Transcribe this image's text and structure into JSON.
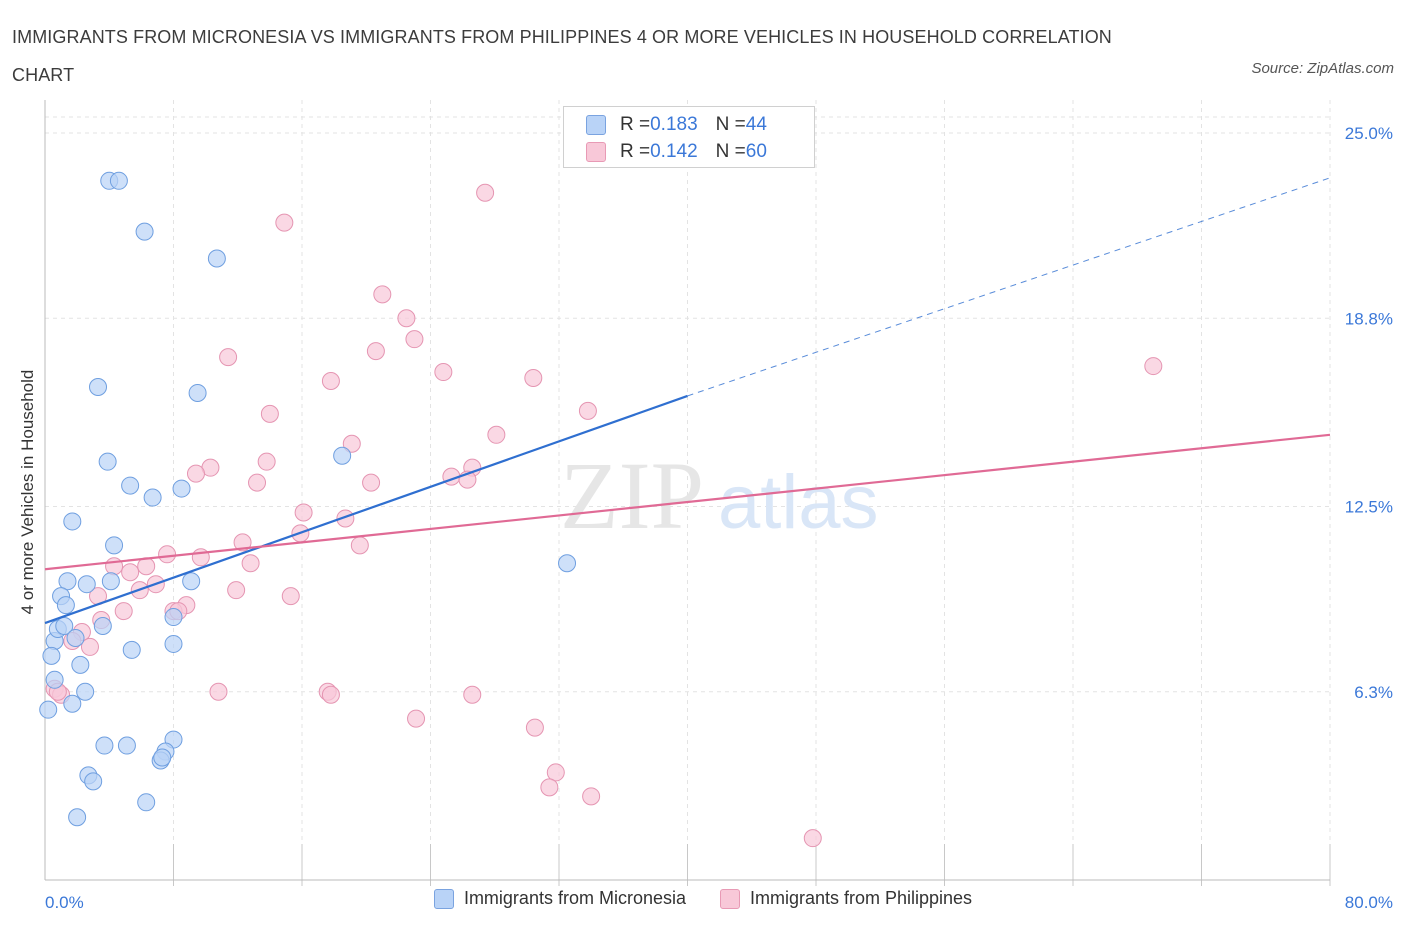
{
  "header": {
    "title": "IMMIGRANTS FROM MICRONESIA VS IMMIGRANTS FROM PHILIPPINES 4 OR MORE VEHICLES IN HOUSEHOLD CORRELATION CHART",
    "source": "Source: ZipAtlas.com"
  },
  "watermark": {
    "zip": "ZIP",
    "atlas": "atlas"
  },
  "colors": {
    "blue_fill": "#b9d3f7",
    "blue_stroke": "#6f9fe0",
    "blue_line": "#2f6fd0",
    "pink_fill": "#f8c8d8",
    "pink_stroke": "#e595b2",
    "pink_line": "#e06a95",
    "axis_label": "#3b78d8",
    "grid": "#e3e3e3"
  },
  "legend_top": {
    "series": [
      {
        "r_label": "R = ",
        "r_value": "0.183",
        "n_label": "N = ",
        "n_value": "44"
      },
      {
        "r_label": "R = ",
        "r_value": "0.142",
        "n_label": "N = ",
        "n_value": "60"
      }
    ]
  },
  "legend_bottom": {
    "series": [
      {
        "label": "Immigrants from Micronesia"
      },
      {
        "label": "Immigrants from Philippines"
      }
    ]
  },
  "chart_data": {
    "type": "scatter",
    "title": "IMMIGRANTS FROM MICRONESIA VS IMMIGRANTS FROM PHILIPPINES 4 OR MORE VEHICLES IN HOUSEHOLD CORRELATION CHART",
    "xlabel": "",
    "ylabel": "4 or more Vehicles in Household",
    "xlim": [
      0,
      80
    ],
    "ylim": [
      0,
      25.5
    ],
    "x_tick_labels": [
      {
        "value": 0,
        "label": "0.0%"
      },
      {
        "value": 80,
        "label": "80.0%"
      }
    ],
    "y_tick_labels": [
      {
        "value": 6.3,
        "label": "6.3%"
      },
      {
        "value": 12.5,
        "label": "12.5%"
      },
      {
        "value": 18.8,
        "label": "18.8%"
      },
      {
        "value": 25.0,
        "label": "25.0%"
      }
    ],
    "x_minor_ticks": [
      8,
      16,
      24,
      32,
      40,
      48,
      56,
      64,
      72,
      80
    ],
    "grid": true,
    "legend_position": "top-center",
    "series": [
      {
        "name": "Immigrants from Micronesia",
        "color": "blue",
        "R": 0.183,
        "N": 44,
        "trend": {
          "x": [
            0,
            40
          ],
          "y": [
            8.6,
            16.2
          ],
          "dashed_extension_to": [
            80,
            23.5
          ]
        },
        "points": [
          [
            4.0,
            23.4
          ],
          [
            4.6,
            23.4
          ],
          [
            6.2,
            21.7
          ],
          [
            10.7,
            20.8
          ],
          [
            3.3,
            16.5
          ],
          [
            9.5,
            16.3
          ],
          [
            3.9,
            14.0
          ],
          [
            18.5,
            14.2
          ],
          [
            5.3,
            13.2
          ],
          [
            6.7,
            12.8
          ],
          [
            8.5,
            13.1
          ],
          [
            1.7,
            12.0
          ],
          [
            4.3,
            11.2
          ],
          [
            32.5,
            10.6
          ],
          [
            1.4,
            10.0
          ],
          [
            2.6,
            9.9
          ],
          [
            4.1,
            10.0
          ],
          [
            9.1,
            10.0
          ],
          [
            1.0,
            9.5
          ],
          [
            1.3,
            9.2
          ],
          [
            8.0,
            8.8
          ],
          [
            0.6,
            8.0
          ],
          [
            0.8,
            8.4
          ],
          [
            1.2,
            8.5
          ],
          [
            1.9,
            8.1
          ],
          [
            3.6,
            8.5
          ],
          [
            8.0,
            7.9
          ],
          [
            0.4,
            7.5
          ],
          [
            5.4,
            7.7
          ],
          [
            2.2,
            7.2
          ],
          [
            0.6,
            6.7
          ],
          [
            2.5,
            6.3
          ],
          [
            0.2,
            5.7
          ],
          [
            1.7,
            5.9
          ],
          [
            8.0,
            4.7
          ],
          [
            3.7,
            4.5
          ],
          [
            5.1,
            4.5
          ],
          [
            7.5,
            4.3
          ],
          [
            7.2,
            4.0
          ],
          [
            2.7,
            3.5
          ],
          [
            3.0,
            3.3
          ],
          [
            6.3,
            2.6
          ],
          [
            2.0,
            2.1
          ],
          [
            7.3,
            4.1
          ]
        ]
      },
      {
        "name": "Immigrants from Philippines",
        "color": "pink",
        "R": 0.142,
        "N": 60,
        "trend": {
          "x": [
            0,
            80
          ],
          "y": [
            10.4,
            14.9
          ]
        },
        "points": [
          [
            27.4,
            23.0
          ],
          [
            14.9,
            22.0
          ],
          [
            21.0,
            19.6
          ],
          [
            22.5,
            18.8
          ],
          [
            11.4,
            17.5
          ],
          [
            20.6,
            17.7
          ],
          [
            23.0,
            18.1
          ],
          [
            24.8,
            17.0
          ],
          [
            17.8,
            16.7
          ],
          [
            30.4,
            16.8
          ],
          [
            69.0,
            17.2
          ],
          [
            14.0,
            15.6
          ],
          [
            33.8,
            15.7
          ],
          [
            28.1,
            14.9
          ],
          [
            19.1,
            14.6
          ],
          [
            13.8,
            14.0
          ],
          [
            10.3,
            13.8
          ],
          [
            9.4,
            13.6
          ],
          [
            25.3,
            13.5
          ],
          [
            26.6,
            13.8
          ],
          [
            26.3,
            13.4
          ],
          [
            13.2,
            13.3
          ],
          [
            20.3,
            13.3
          ],
          [
            16.1,
            12.3
          ],
          [
            18.7,
            12.1
          ],
          [
            15.9,
            11.6
          ],
          [
            12.3,
            11.3
          ],
          [
            19.6,
            11.2
          ],
          [
            7.6,
            10.9
          ],
          [
            9.7,
            10.8
          ],
          [
            4.3,
            10.5
          ],
          [
            6.3,
            10.5
          ],
          [
            12.8,
            10.6
          ],
          [
            5.3,
            10.3
          ],
          [
            6.9,
            9.9
          ],
          [
            5.9,
            9.7
          ],
          [
            11.9,
            9.7
          ],
          [
            15.3,
            9.5
          ],
          [
            3.3,
            9.5
          ],
          [
            8.8,
            9.2
          ],
          [
            8.0,
            9.0
          ],
          [
            8.3,
            9.0
          ],
          [
            4.9,
            9.0
          ],
          [
            3.5,
            8.7
          ],
          [
            2.3,
            8.3
          ],
          [
            1.7,
            8.0
          ],
          [
            2.8,
            7.8
          ],
          [
            0.6,
            6.4
          ],
          [
            1.0,
            6.2
          ],
          [
            0.8,
            6.3
          ],
          [
            10.8,
            6.3
          ],
          [
            17.6,
            6.3
          ],
          [
            17.8,
            6.2
          ],
          [
            26.6,
            6.2
          ],
          [
            23.1,
            5.4
          ],
          [
            30.5,
            5.1
          ],
          [
            31.8,
            3.6
          ],
          [
            31.4,
            3.1
          ],
          [
            34.0,
            2.8
          ],
          [
            47.8,
            1.4
          ]
        ]
      }
    ]
  }
}
